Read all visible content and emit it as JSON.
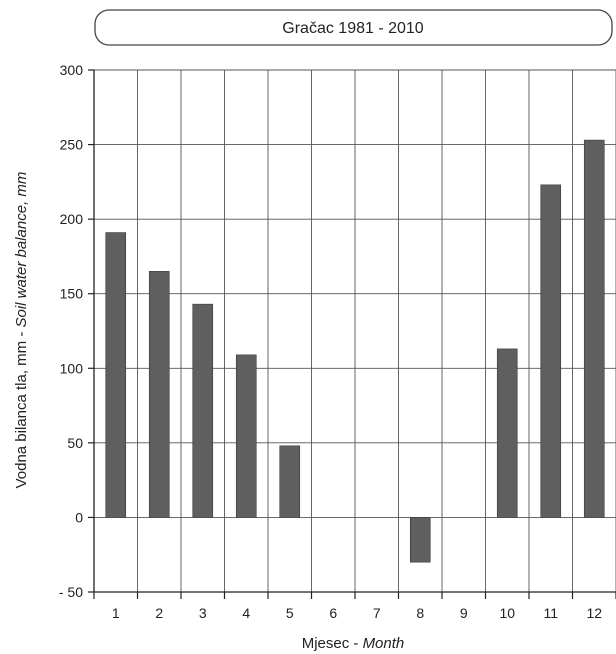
{
  "chart_data": {
    "type": "bar",
    "title": "Gračac 1981 - 2010",
    "xlabel_main": "Mjesec - ",
    "xlabel_italic": "Month",
    "ylabel_main": "Vodna bilanca tla, mm - ",
    "ylabel_italic": "Soil water balance, mm",
    "categories": [
      "1",
      "2",
      "3",
      "4",
      "5",
      "6",
      "7",
      "8",
      "9",
      "10",
      "11",
      "12"
    ],
    "values": [
      191,
      165,
      143,
      109,
      48,
      0,
      0,
      -30,
      0,
      113,
      223,
      253
    ],
    "ylim": [
      -50,
      300
    ],
    "yticks": [
      300,
      250,
      200,
      150,
      100,
      50,
      0,
      -50
    ],
    "ytick_labels": [
      "300",
      "250",
      "200",
      "150",
      "100",
      "50",
      "0",
      "- 50"
    ],
    "grid": true,
    "bar_color": "#5f5f5f"
  }
}
